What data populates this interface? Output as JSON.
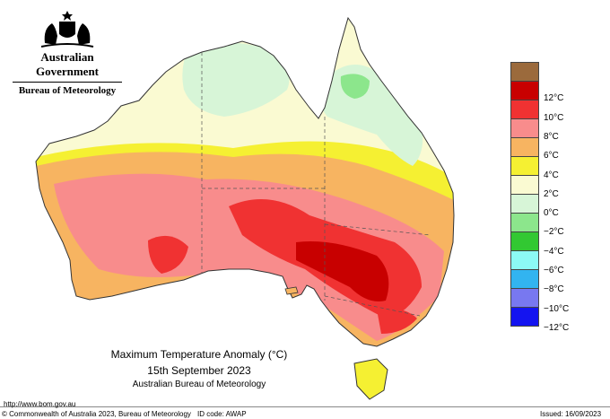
{
  "header": {
    "government": "Australian Government",
    "agency": "Bureau of Meteorology",
    "crest_icon": "coat-of-arms-icon"
  },
  "map": {
    "title": "Maximum Temperature Anomaly (°C)",
    "date": "15th September 2023",
    "source": "Australian Bureau of Meteorology"
  },
  "legend": {
    "items": [
      {
        "label": "",
        "color": "#9b6a3c"
      },
      {
        "label": "12°C",
        "color": "#c80000"
      },
      {
        "label": "10°C",
        "color": "#f03232"
      },
      {
        "label": "8°C",
        "color": "#f88c8c"
      },
      {
        "label": "6°C",
        "color": "#f7b461"
      },
      {
        "label": "4°C",
        "color": "#f5f032"
      },
      {
        "label": "2°C",
        "color": "#fafad2"
      },
      {
        "label": "0°C",
        "color": "#d7f5d7"
      },
      {
        "label": "−2°C",
        "color": "#8ce68c"
      },
      {
        "label": "−4°C",
        "color": "#32c832"
      },
      {
        "label": "−6°C",
        "color": "#8cfaf5"
      },
      {
        "label": "−8°C",
        "color": "#32b4f0"
      },
      {
        "label": "−10°C",
        "color": "#7878f0"
      },
      {
        "label": "−12°C",
        "color": "#1414f0"
      }
    ]
  },
  "footer": {
    "url": "http://www.bom.gov.au",
    "copyright": "© Commonwealth of Australia 2023, Bureau of Meteorology",
    "id_code": "ID code: AWAP",
    "issued": "Issued: 16/09/2023"
  }
}
